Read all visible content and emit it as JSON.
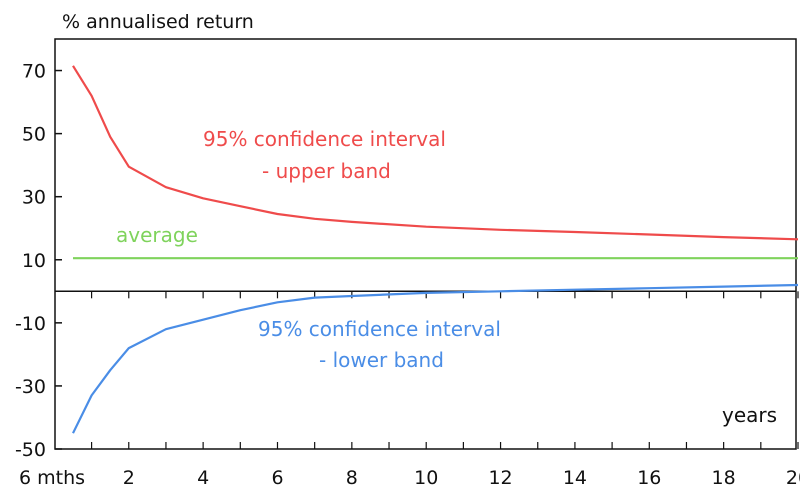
{
  "chart_data": {
    "type": "line",
    "ylabel": "% annualised return",
    "xlabel": "years",
    "xlim": [
      0.5,
      20
    ],
    "ylim": [
      -50,
      80
    ],
    "x_zero_line": 0,
    "y_ticks": [
      70,
      50,
      30,
      10,
      -10,
      -30,
      -50
    ],
    "x_tick_labels": [
      {
        "x": 0.5,
        "label": "6 mths"
      },
      {
        "x": 2,
        "label": "2"
      },
      {
        "x": 4,
        "label": "4"
      },
      {
        "x": 6,
        "label": "6"
      },
      {
        "x": 8,
        "label": "8"
      },
      {
        "x": 10,
        "label": "10"
      },
      {
        "x": 12,
        "label": "12"
      },
      {
        "x": 14,
        "label": "14"
      },
      {
        "x": 16,
        "label": "16"
      },
      {
        "x": 18,
        "label": "18"
      },
      {
        "x": 20,
        "label": "20"
      }
    ],
    "series": [
      {
        "key": "upper",
        "color": "#ef4b4b",
        "x": [
          0.5,
          1,
          1.5,
          2,
          3,
          4,
          5,
          6,
          7,
          8,
          10,
          12,
          14,
          16,
          18,
          20
        ],
        "y": [
          71.5,
          62,
          49,
          39.5,
          33,
          29.5,
          27,
          24.5,
          23,
          22,
          20.5,
          19.5,
          18.8,
          18,
          17.2,
          16.5
        ]
      },
      {
        "key": "average",
        "color": "#7fd35c",
        "x": [
          0.5,
          20
        ],
        "y": [
          10.5,
          10.5
        ]
      },
      {
        "key": "lower",
        "color": "#4a8de6",
        "x": [
          0.5,
          1,
          1.5,
          2,
          3,
          4,
          5,
          6,
          7,
          8,
          10,
          12,
          14,
          16,
          18,
          20
        ],
        "y": [
          -45,
          -33,
          -25,
          -18,
          -12,
          -9,
          -6,
          -3.5,
          -2,
          -1.5,
          -0.5,
          0,
          0.5,
          1,
          1.5,
          2
        ]
      }
    ],
    "annotations": {
      "upper_line1": "95% confidence interval",
      "upper_line2": "- upper band",
      "lower_line1": "95% confidence interval",
      "lower_line2": "- lower band",
      "average": "average"
    }
  }
}
